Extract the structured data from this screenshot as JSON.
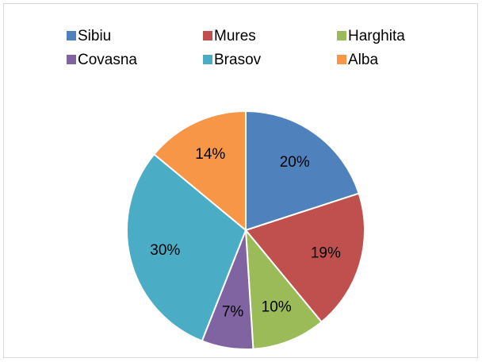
{
  "chart_data": {
    "type": "pie",
    "categories": [
      "Sibiu",
      "Mures",
      "Harghita",
      "Covasna",
      "Brasov",
      "Alba"
    ],
    "values": [
      20,
      19,
      10,
      7,
      30,
      14
    ],
    "value_labels": [
      "20%",
      "19%",
      "10%",
      "7%",
      "30%",
      "14%"
    ],
    "colors": [
      "#4f81bd",
      "#c0504d",
      "#9bbb59",
      "#8064a2",
      "#4bacc6",
      "#f79646"
    ]
  }
}
